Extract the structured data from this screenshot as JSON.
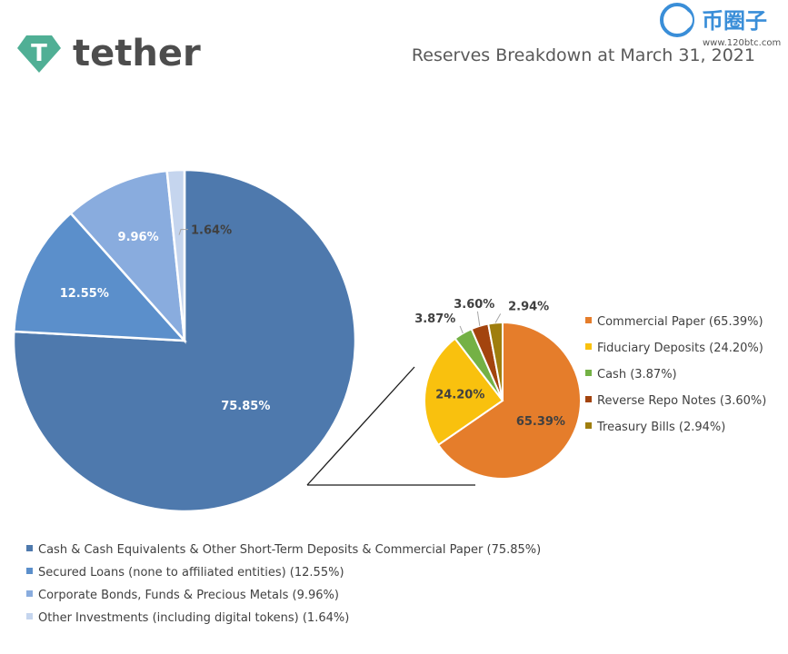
{
  "brand": {
    "name": "tether",
    "color": "#50af95"
  },
  "watermark": {
    "text": "币圈子",
    "url": "www.120btc.com",
    "color": "#3a8ed8"
  },
  "chart_data": [
    {
      "type": "pie",
      "title": "Reserves Breakdown at March 31, 2021",
      "categories": [
        "Cash & Cash Equivalents & Other Short-Term Deposits & Commercial Paper (75.85%)",
        "Secured Loans (none to affiliated entities) (12.55%)",
        "Corporate Bonds, Funds & Precious Metals (9.96%)",
        "Other Investments (including digital tokens) (1.64%)"
      ],
      "values": [
        75.85,
        12.55,
        9.96,
        1.64
      ],
      "labels": [
        "75.85%",
        "12.55%",
        "9.96%",
        "1.64%"
      ],
      "colors": [
        "#4e79ad",
        "#5b8fcb",
        "#89acde",
        "#c5d5ee"
      ],
      "legend_position": "bottom"
    },
    {
      "type": "pie",
      "categories": [
        "Commercial Paper (65.39%)",
        "Fiduciary Deposits (24.20%)",
        "Cash (3.87%)",
        "Reverse Repo Notes (3.60%)",
        "Treasury Bills (2.94%)"
      ],
      "values": [
        65.39,
        24.2,
        3.87,
        3.6,
        2.94
      ],
      "labels": [
        "65.39%",
        "24.20%",
        "3.87%",
        "3.60%",
        "2.94%"
      ],
      "colors": [
        "#e57d2b",
        "#f9c10e",
        "#74b145",
        "#a3440e",
        "#9f7e0e"
      ],
      "legend_position": "right"
    }
  ]
}
